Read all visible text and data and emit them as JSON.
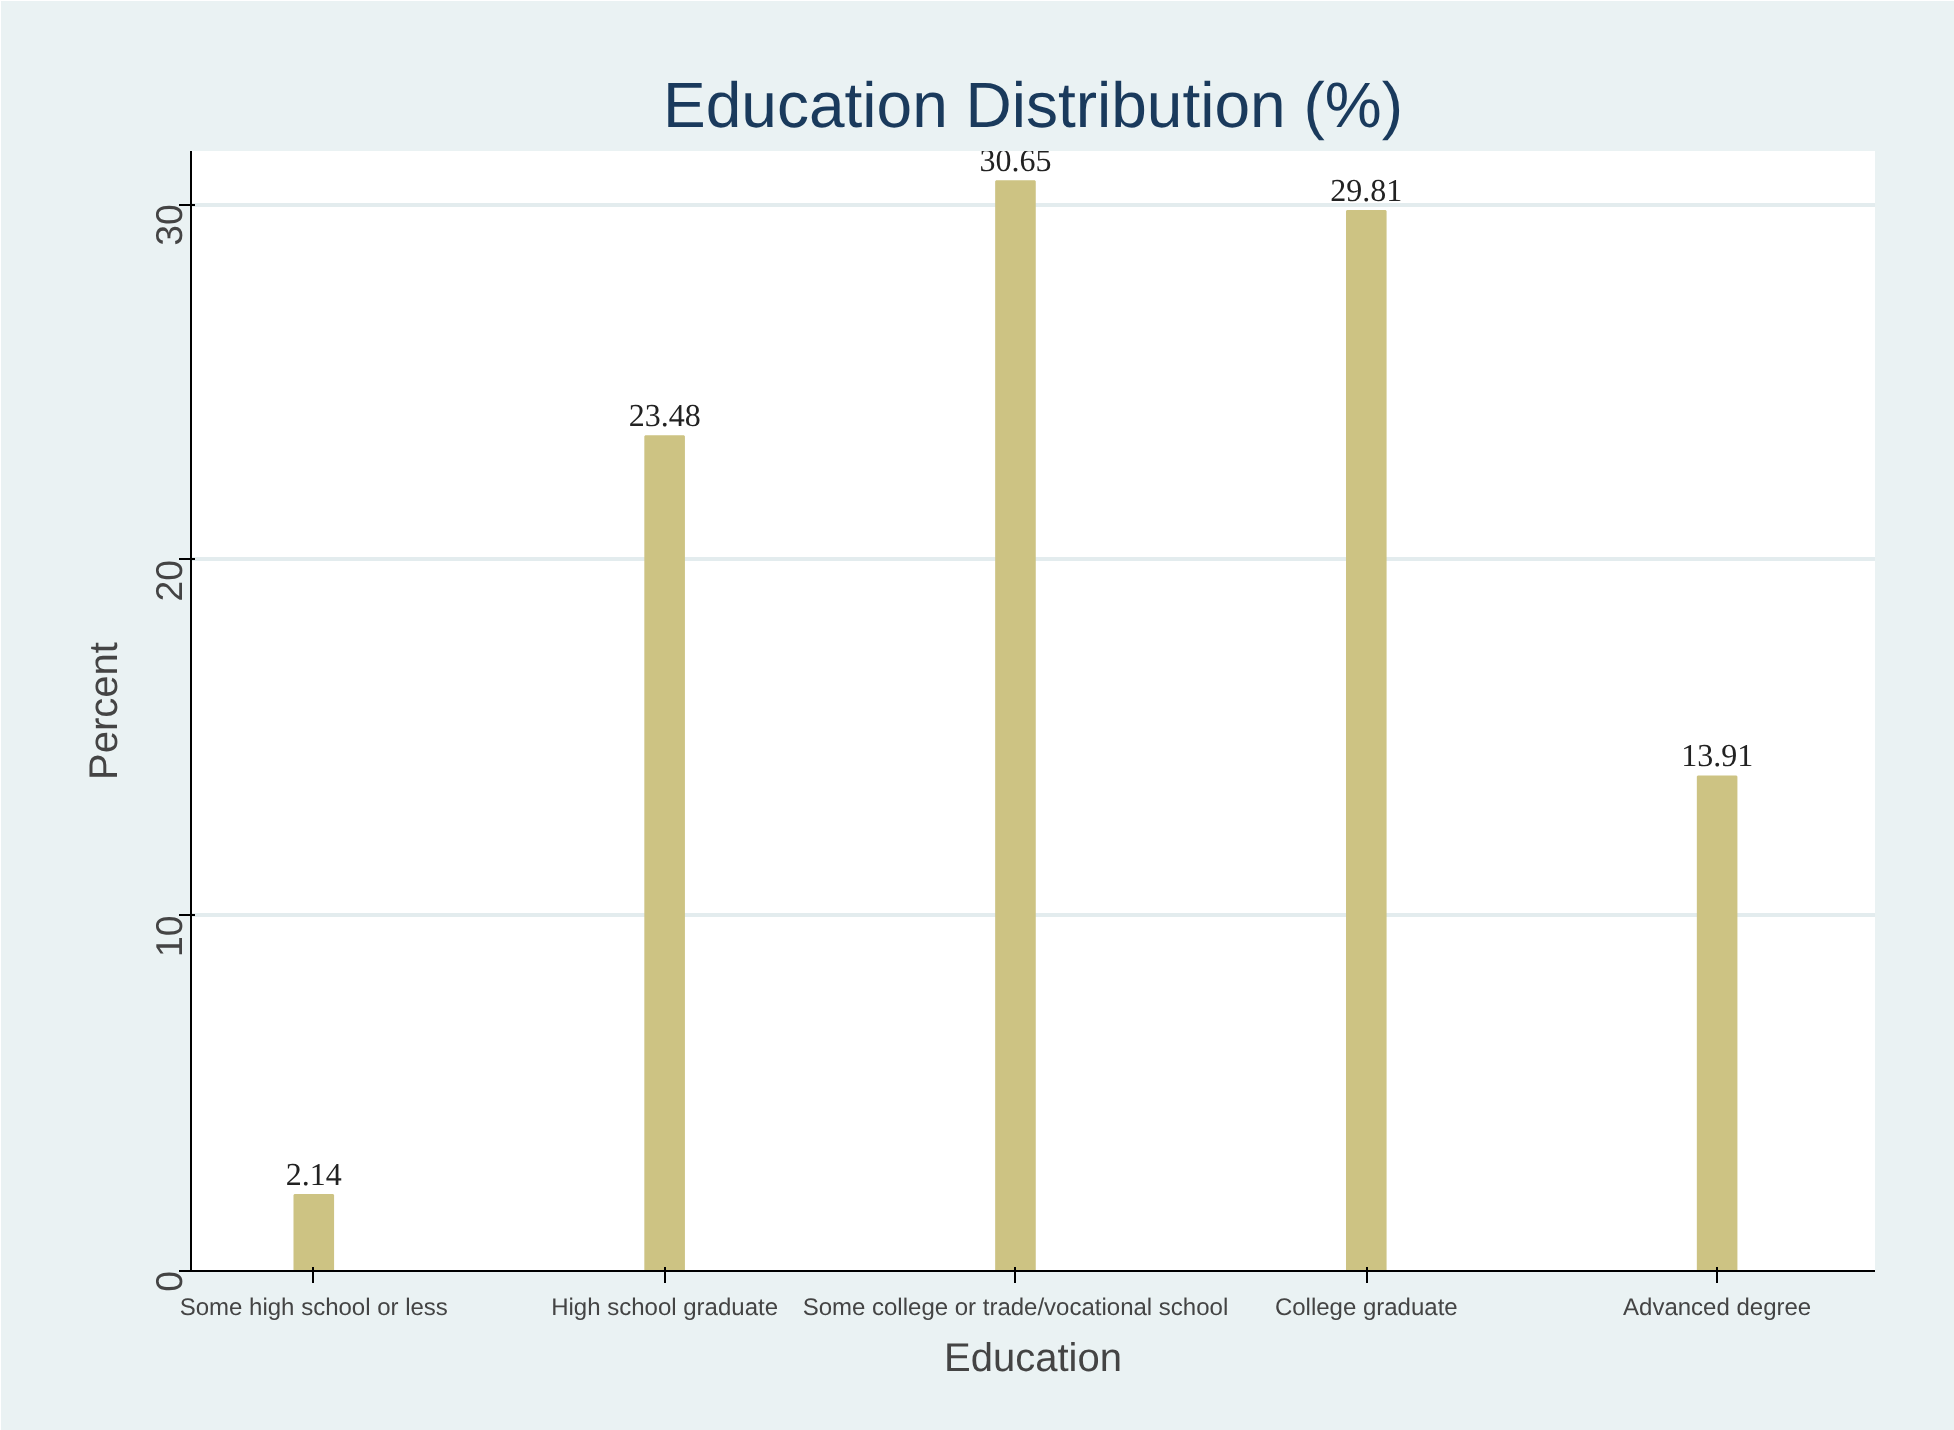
{
  "chart_data": {
    "type": "bar",
    "title": "Education Distribution (%)",
    "xlabel": "Education",
    "ylabel": "Percent",
    "categories": [
      "Some high school or less",
      "High school graduate",
      "Some college or trade/vocational school",
      "College graduate",
      "Advanced degree"
    ],
    "values": [
      2.14,
      23.48,
      30.65,
      29.81,
      13.91
    ],
    "color": "#cdc383",
    "ylim": [
      0,
      31.5
    ],
    "yticks": [
      0,
      10,
      20,
      30
    ],
    "grid": "y",
    "data_labels": true
  }
}
